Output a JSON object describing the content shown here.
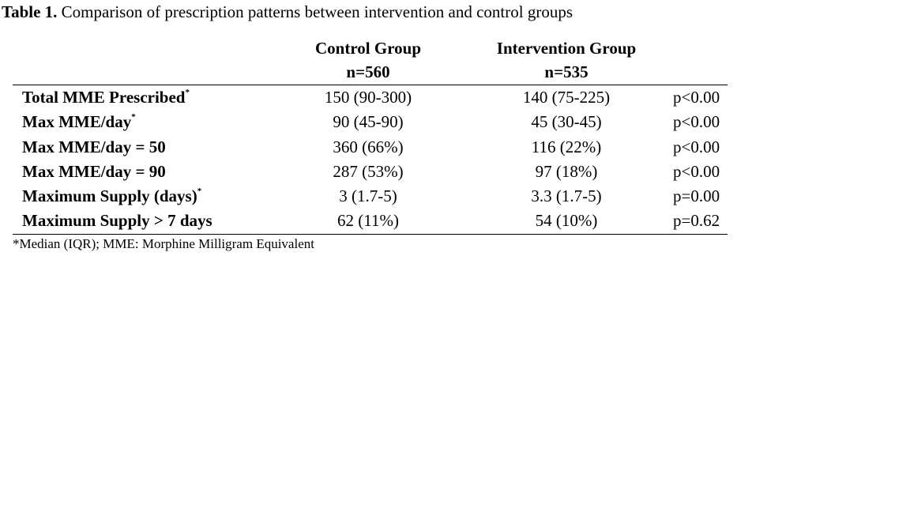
{
  "caption": {
    "label": "Table 1.",
    "text": "Comparison of prescription patterns between intervention and control groups"
  },
  "table": {
    "headers": {
      "control": {
        "name": "Control Group",
        "n": "n=560"
      },
      "intervention": {
        "name": "Intervention Group",
        "n": "n=535"
      }
    },
    "rows": [
      {
        "label": "Total MME Prescribed",
        "marker": "*",
        "control": "150 (90-300)",
        "intervention": "140 (75-225)",
        "p": "p<0.00"
      },
      {
        "label": "Max MME/day",
        "marker": "*",
        "control": "90 (45-90)",
        "intervention": "45 (30-45)",
        "p": "p<0.00"
      },
      {
        "label": "Max MME/day = 50",
        "marker": "",
        "control": "360 (66%)",
        "intervention": "116 (22%)",
        "p": "p<0.00"
      },
      {
        "label": "Max MME/day = 90",
        "marker": "",
        "control": "287 (53%)",
        "intervention": "97 (18%)",
        "p": "p<0.00"
      },
      {
        "label": "Maximum Supply (days)",
        "marker": "*",
        "control": "3 (1.7-5)",
        "intervention": "3.3 (1.7-5)",
        "p": "p=0.00"
      },
      {
        "label": "Maximum Supply > 7 days",
        "marker": "",
        "control": "62 (11%)",
        "intervention": "54 (10%)",
        "p": "p=0.62"
      }
    ]
  },
  "footnote": "*Median (IQR); MME: Morphine Milligram Equivalent"
}
